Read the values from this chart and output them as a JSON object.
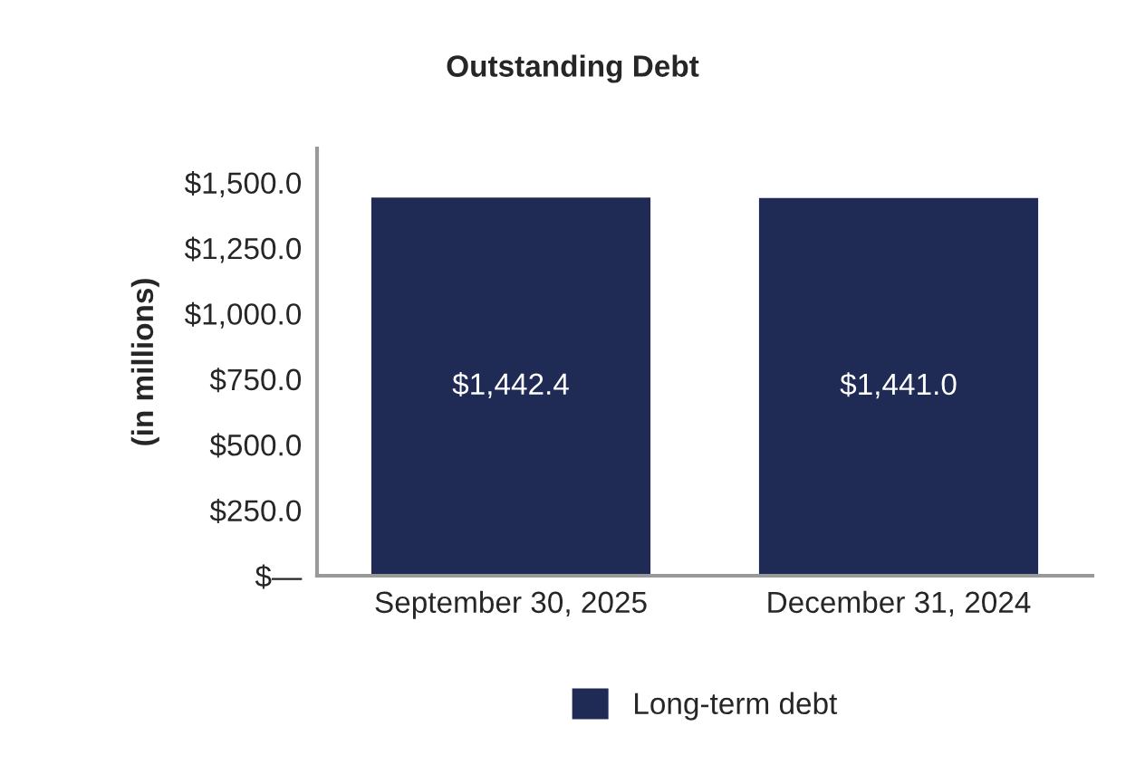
{
  "chart_data": {
    "type": "bar",
    "title": "Outstanding Debt",
    "ylabel": "(in millions)",
    "categories": [
      "September 30, 2025",
      "December 31, 2024"
    ],
    "series": [
      {
        "name": "Long-term debt",
        "color": "#1f2a55",
        "values": [
          1442.4,
          1441.0
        ],
        "value_labels": [
          "$1,442.4",
          "$1,441.0"
        ]
      }
    ],
    "ylim": [
      0,
      1630
    ],
    "yticks": [
      {
        "value": 0,
        "label": "$—"
      },
      {
        "value": 250,
        "label": "$250.0"
      },
      {
        "value": 500,
        "label": "$500.0"
      },
      {
        "value": 750,
        "label": "$750.0"
      },
      {
        "value": 1000,
        "label": "$1,000.0"
      },
      {
        "value": 1250,
        "label": "$1,250.0"
      },
      {
        "value": 1500,
        "label": "$1,500.0"
      }
    ],
    "grid": false,
    "legend": "bottom"
  }
}
